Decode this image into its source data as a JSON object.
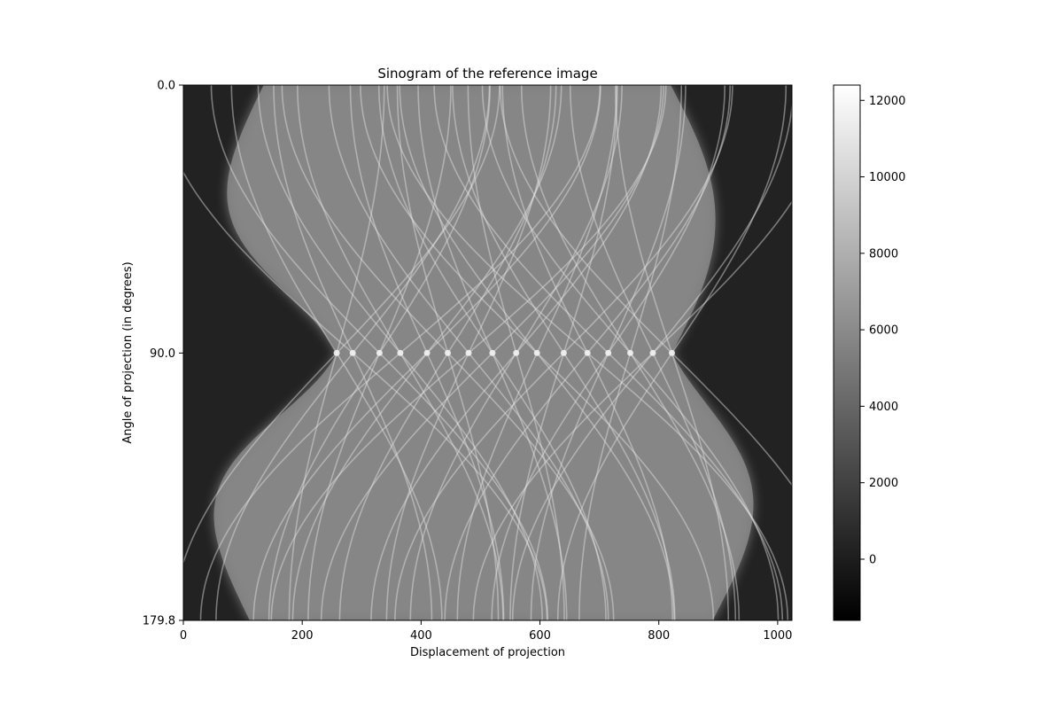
{
  "chart_data": {
    "type": "heatmap",
    "title": "Sinogram of the reference image",
    "xlabel": "Displacement of projection",
    "ylabel": "Angle of projection (in degrees)",
    "xlim": [
      0,
      1024
    ],
    "ylim": [
      0.0,
      179.8
    ],
    "x_ticks": [
      "0",
      "200",
      "400",
      "600",
      "800",
      "1000"
    ],
    "x_tick_values": [
      0,
      200,
      400,
      600,
      800,
      1000
    ],
    "y_ticks": [
      "0.0",
      "90.0",
      "179.8"
    ],
    "y_tick_values": [
      0.0,
      90.0,
      179.8
    ],
    "y_inverted": true,
    "colormap": "gray",
    "colorbar": {
      "range": [
        -1600,
        12400
      ],
      "ticks": [
        "0",
        "2000",
        "4000",
        "6000",
        "8000",
        "10000",
        "12000"
      ],
      "tick_values": [
        0,
        2000,
        4000,
        6000,
        8000,
        10000,
        12000
      ]
    },
    "grid": false,
    "features": {
      "background_value": 0,
      "left_edge_at_0deg": 135,
      "right_edge_at_0deg": 820,
      "left_edge_at_90deg": 258,
      "right_edge_at_90deg": 822,
      "left_edge_at_179_8deg": 112,
      "right_edge_at_179_8deg": 890,
      "convergence_points_at_90deg": [
        258,
        285,
        330,
        365,
        410,
        445,
        480,
        520,
        560,
        595,
        640,
        680,
        715,
        752,
        790,
        822
      ]
    }
  },
  "colors": {
    "background": "#222222",
    "axis": "#000000"
  }
}
